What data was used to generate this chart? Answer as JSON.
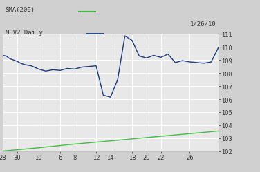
{
  "background_color": "#d0d0d0",
  "plot_bg_color": "#e8e8e8",
  "grid_color": "#ffffff",
  "x_tick_labels": [
    "28",
    "30",
    "10",
    "6",
    "8",
    "12",
    "14",
    "18",
    "20",
    "22",
    "26"
  ],
  "y_ticks": [
    102,
    103,
    104,
    105,
    106,
    107,
    108,
    109,
    110,
    111
  ],
  "ylim": [
    102,
    111
  ],
  "xlim": [
    0,
    30
  ],
  "annotation": "1/26/10",
  "legend_sma": "SMA(200)",
  "legend_muv": "MUV2 Daily",
  "sma_color": "#44bb44",
  "muv_color": "#1a3a7a",
  "sma_x": [
    0,
    1,
    2,
    3,
    4,
    5,
    6,
    7,
    8,
    9,
    10,
    11,
    12,
    13,
    14,
    15,
    16,
    17,
    18,
    19,
    20,
    21,
    22,
    23,
    24,
    25,
    26,
    27,
    28,
    29,
    30
  ],
  "sma_y": [
    102.02,
    102.07,
    102.12,
    102.17,
    102.22,
    102.27,
    102.33,
    102.38,
    102.44,
    102.5,
    102.55,
    102.6,
    102.65,
    102.7,
    102.75,
    102.8,
    102.85,
    102.9,
    102.95,
    103.0,
    103.05,
    103.1,
    103.15,
    103.2,
    103.25,
    103.3,
    103.35,
    103.4,
    103.45,
    103.5,
    103.55
  ],
  "muv_x": [
    0,
    0.5,
    1,
    1.5,
    2,
    2.5,
    3,
    4,
    5,
    6,
    7,
    8,
    9,
    10,
    11,
    12,
    13,
    14,
    15,
    16,
    17,
    18,
    19,
    20,
    21,
    22,
    23,
    24,
    25,
    26,
    27,
    28,
    29,
    30
  ],
  "muv_y": [
    109.35,
    109.3,
    109.1,
    109.0,
    108.9,
    108.75,
    108.65,
    108.55,
    108.3,
    108.15,
    108.25,
    108.2,
    108.35,
    108.3,
    108.45,
    108.5,
    108.55,
    106.3,
    106.15,
    107.5,
    110.85,
    110.5,
    109.3,
    109.15,
    109.35,
    109.2,
    109.45,
    108.8,
    108.95,
    108.85,
    108.8,
    108.75,
    108.85,
    109.95
  ],
  "x_tick_positions": [
    0,
    2,
    5,
    8,
    10,
    13,
    15,
    18,
    20,
    22,
    26
  ]
}
